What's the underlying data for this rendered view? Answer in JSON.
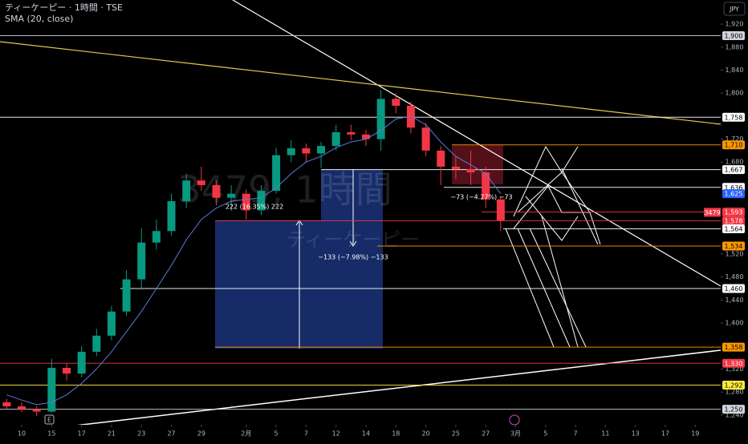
{
  "chart_data": {
    "type": "candlestick",
    "title": "ティーケーピー · 1時間 · TSE",
    "indicator": "SMA (20, close)",
    "currency": "JPY",
    "symbol_tag": "3479",
    "watermark": [
      "3479, 1時間",
      "ティーケーピー"
    ],
    "annotations": [
      "222 (16.35%) 222",
      "−133 (−7.98%) −133",
      "−73 (−4.27%) −73"
    ],
    "up_color": "#089981",
    "down_color": "#f23645",
    "x": [
      -1,
      0,
      1,
      2,
      3,
      4,
      5,
      6,
      7,
      8,
      9,
      10,
      11,
      12,
      13,
      14,
      15,
      16,
      17,
      18,
      19,
      20,
      21,
      22,
      23,
      24,
      25,
      26,
      27,
      28,
      29,
      30,
      31,
      32
    ],
    "open": [
      1262,
      1255,
      1250,
      1246,
      1322,
      1312,
      1350,
      1378,
      1420,
      1476,
      1540,
      1560,
      1612,
      1648,
      1640,
      1618,
      1625,
      1596,
      1630,
      1692,
      1704,
      1695,
      1708,
      1732,
      1728,
      1720,
      1790,
      1778,
      1740,
      1700,
      1672,
      1668,
      1662,
      1615
    ],
    "high": [
      1268,
      1262,
      1255,
      1338,
      1330,
      1360,
      1390,
      1430,
      1492,
      1565,
      1580,
      1625,
      1660,
      1672,
      1648,
      1640,
      1632,
      1640,
      1705,
      1718,
      1712,
      1715,
      1745,
      1745,
      1736,
      1805,
      1800,
      1785,
      1748,
      1708,
      1690,
      1700,
      1672,
      1620
    ],
    "low": [
      1250,
      1245,
      1238,
      1244,
      1300,
      1305,
      1342,
      1370,
      1412,
      1458,
      1528,
      1552,
      1600,
      1630,
      1605,
      1595,
      1580,
      1588,
      1625,
      1680,
      1680,
      1670,
      1700,
      1718,
      1708,
      1700,
      1765,
      1730,
      1690,
      1640,
      1650,
      1640,
      1600,
      1560
    ],
    "close": [
      1255,
      1250,
      1246,
      1322,
      1312,
      1350,
      1378,
      1420,
      1476,
      1540,
      1560,
      1612,
      1648,
      1640,
      1618,
      1625,
      1596,
      1630,
      1692,
      1704,
      1695,
      1708,
      1732,
      1728,
      1720,
      1790,
      1778,
      1740,
      1700,
      1672,
      1668,
      1662,
      1615,
      1578
    ],
    "sma": {
      "name": "SMA (20, close)",
      "color": "#5b7bd5",
      "values": [
        1275,
        1266,
        1258,
        1262,
        1275,
        1295,
        1320,
        1350,
        1385,
        1420,
        1460,
        1500,
        1545,
        1580,
        1600,
        1612,
        1615,
        1618,
        1635,
        1660,
        1680,
        1690,
        1705,
        1715,
        1720,
        1735,
        1755,
        1760,
        1745,
        1715,
        1690,
        1675,
        1660,
        1625
      ]
    },
    "xlim": [
      -1.45,
      46.7
    ],
    "ylim": [
      1223,
      1962
    ],
    "xticks": [
      {
        "value": 0,
        "label": "10"
      },
      {
        "value": 2,
        "label": "15"
      },
      {
        "value": 4,
        "label": "17"
      },
      {
        "value": 6,
        "label": "21"
      },
      {
        "value": 8,
        "label": "23"
      },
      {
        "value": 10,
        "label": "27"
      },
      {
        "value": 12,
        "label": "29"
      },
      {
        "value": 15,
        "label": "2月"
      },
      {
        "value": 17,
        "label": "5"
      },
      {
        "value": 19,
        "label": "7"
      },
      {
        "value": 21,
        "label": "12"
      },
      {
        "value": 23,
        "label": "14"
      },
      {
        "value": 25,
        "label": "18"
      },
      {
        "value": 27,
        "label": "20"
      },
      {
        "value": 29,
        "label": "25"
      },
      {
        "value": 31,
        "label": "27"
      },
      {
        "value": 33,
        "label": "3月"
      },
      {
        "value": 35,
        "label": "5"
      },
      {
        "value": 37,
        "label": "7"
      },
      {
        "value": 39,
        "label": "11"
      },
      {
        "value": 41,
        "label": "13"
      },
      {
        "value": 43,
        "label": "17"
      },
      {
        "value": 45,
        "label": "19"
      }
    ],
    "yticks": [
      {
        "value": 1920,
        "label": "1,920"
      },
      {
        "value": 1880,
        "label": "1,880"
      },
      {
        "value": 1840,
        "label": "1,840"
      },
      {
        "value": 1800,
        "label": "1,800"
      },
      {
        "value": 1720,
        "label": "1,720"
      },
      {
        "value": 1680,
        "label": "1,680"
      },
      {
        "value": 1520,
        "label": "1,520"
      },
      {
        "value": 1480,
        "label": "1,480"
      },
      {
        "value": 1440,
        "label": "1,440"
      },
      {
        "value": 1400,
        "label": "1,400"
      },
      {
        "value": 1320,
        "label": "1,320"
      },
      {
        "value": 1280,
        "label": "1,280"
      },
      {
        "value": 1240,
        "label": "1,240"
      }
    ],
    "levels": [
      {
        "value": 1900,
        "label": "1,900",
        "color": "#d1d4dc",
        "text_color": "#000"
      },
      {
        "value": 1758,
        "label": "1,758",
        "color": "#ffffff",
        "text_color": "#000"
      },
      {
        "value": 1710,
        "label": "1,710",
        "color": "#ff9800",
        "text_color": "#000"
      },
      {
        "value": 1667,
        "label": "1,667",
        "color": "#ffffff",
        "text_color": "#000"
      },
      {
        "value": 1636,
        "label": "1,636",
        "color": "#ffffff",
        "text_color": "#000"
      },
      {
        "value": 1625,
        "label": "1,625",
        "color": "#2962ff",
        "text_color": "#fff"
      },
      {
        "value": 1593,
        "label": "1,593",
        "color": "#f23645",
        "text_color": "#fff"
      },
      {
        "value": 1578,
        "label": "1,578",
        "color": "#f23645",
        "text_color": "#fff"
      },
      {
        "value": 1564,
        "label": "1,564",
        "color": "#ffffff",
        "text_color": "#000"
      },
      {
        "value": 1534,
        "label": "1,534",
        "color": "#ff9800",
        "text_color": "#000"
      },
      {
        "value": 1460,
        "label": "1,460",
        "color": "#ffffff",
        "text_color": "#000"
      },
      {
        "value": 1358,
        "label": "1,358",
        "color": "#ff9800",
        "text_color": "#000"
      },
      {
        "value": 1330,
        "label": "1,330",
        "color": "#f23645",
        "text_color": "#fff"
      },
      {
        "value": 1292,
        "label": "1,292",
        "color": "#ffeb3b",
        "text_color": "#000"
      },
      {
        "value": 1250,
        "label": "1,250",
        "color": "#d1d4dc",
        "text_color": "#000"
      }
    ]
  }
}
